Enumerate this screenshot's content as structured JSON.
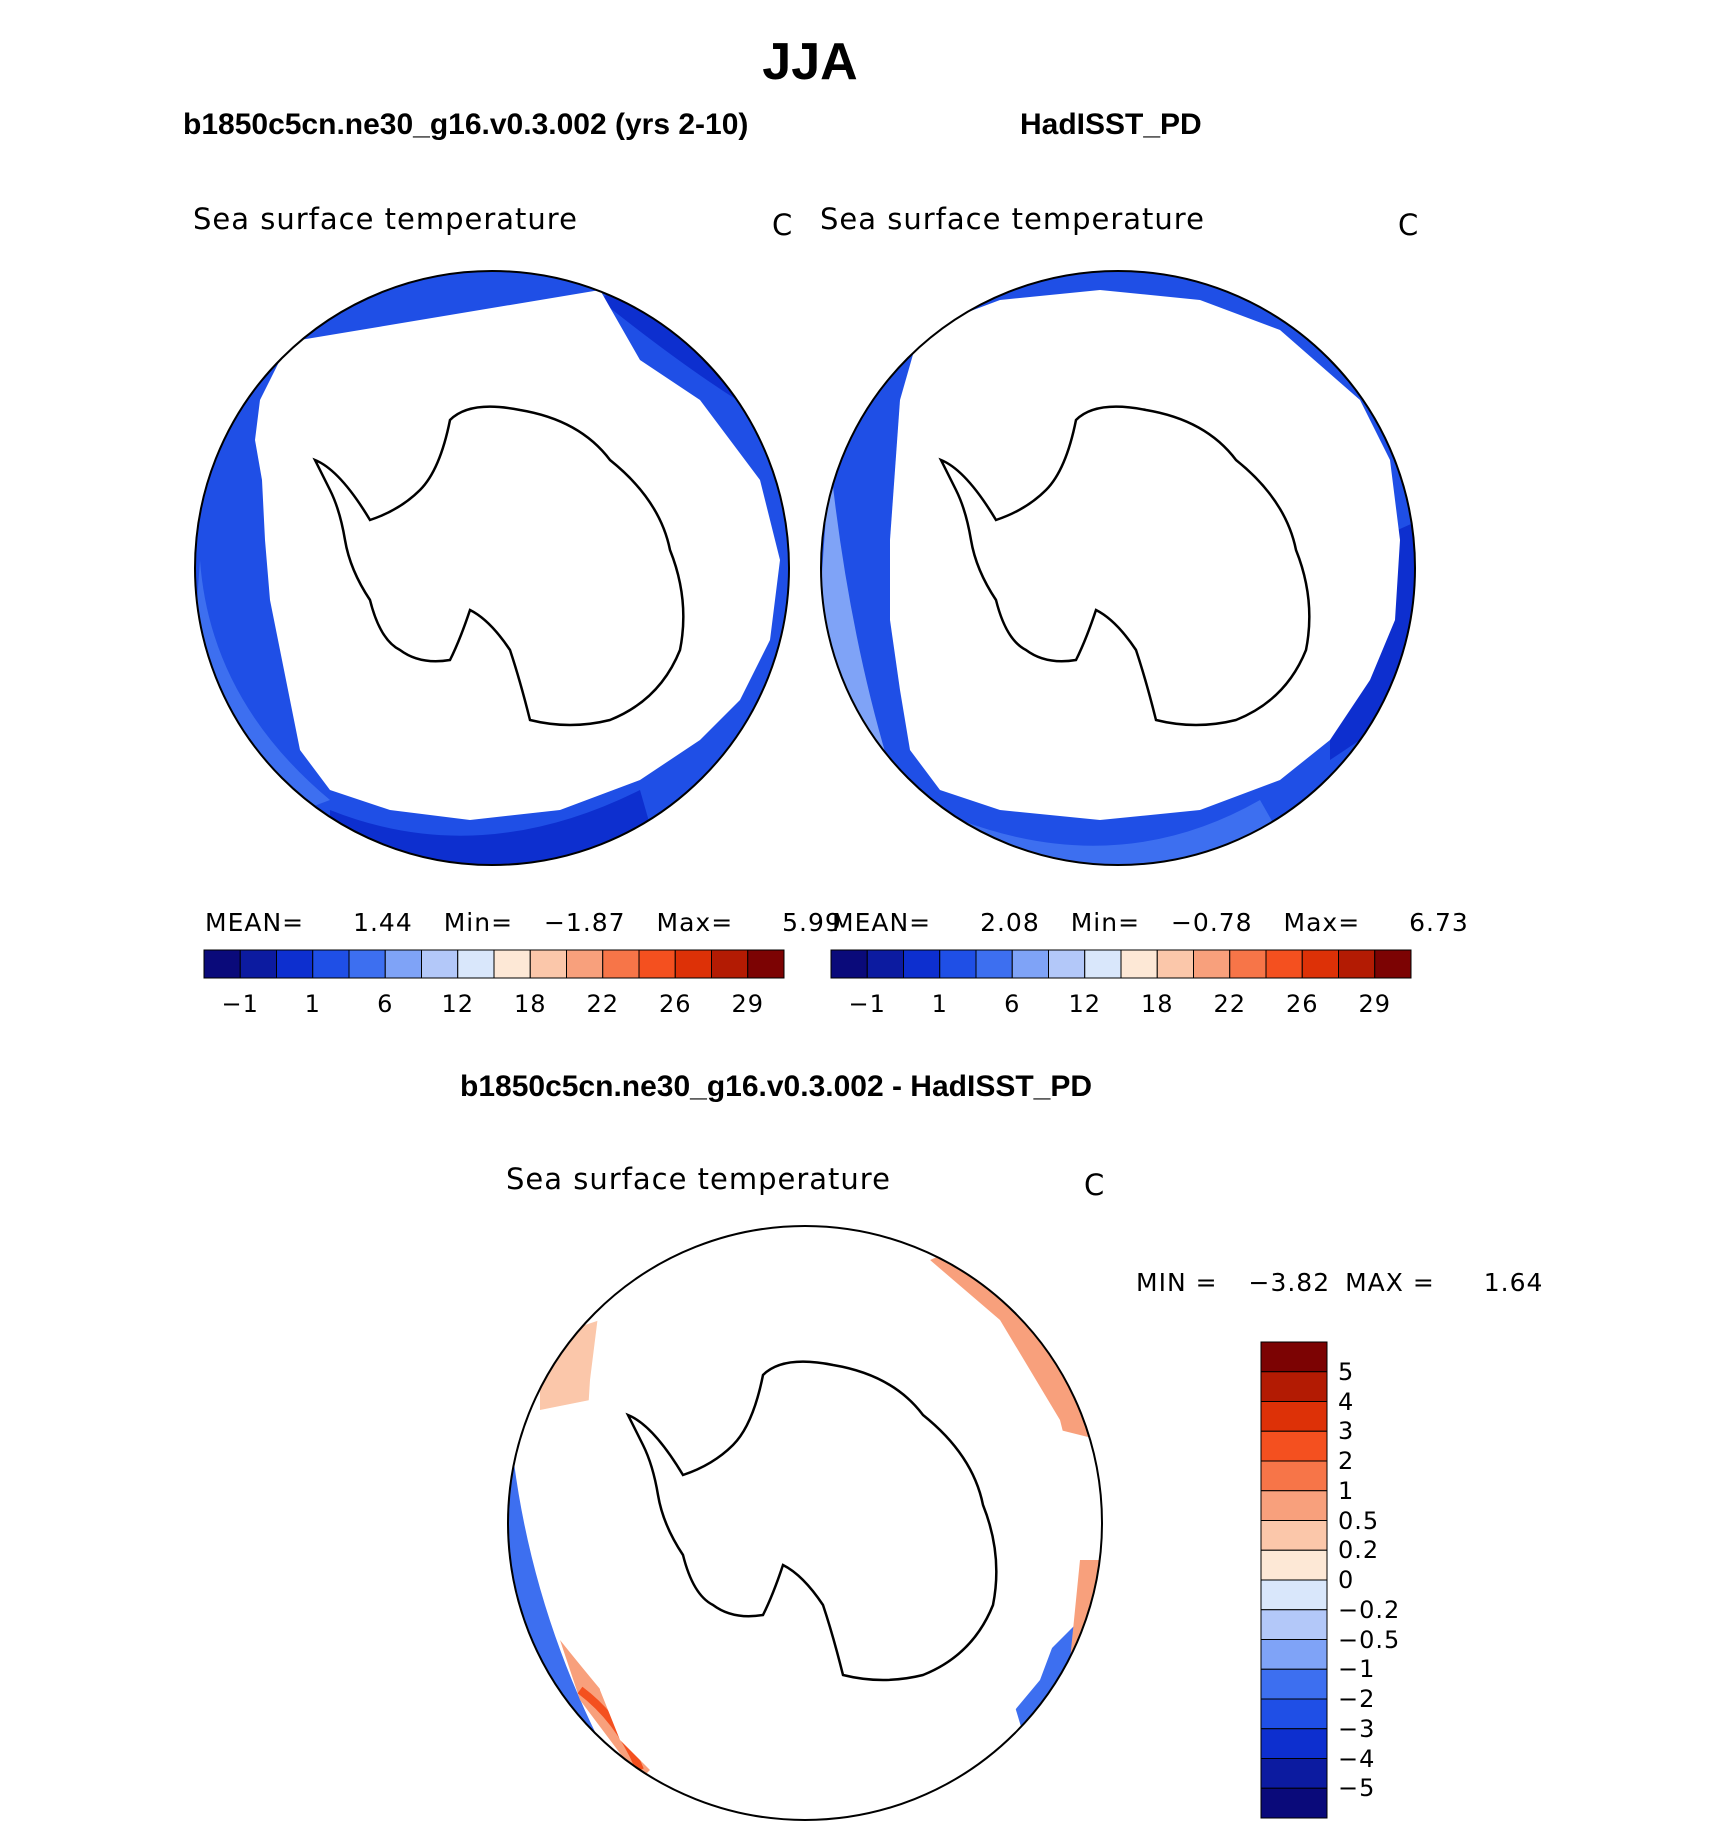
{
  "season": "JJA",
  "colors": {
    "ice": "#ffffff",
    "coast": "#000000",
    "abs_palette": [
      "#0a0a7a",
      "#0c1ba0",
      "#0d2fcf",
      "#1f4fe6",
      "#3d6ff0",
      "#7fa3f7",
      "#b3c8f9",
      "#d9e7fb",
      "#fde8d6",
      "#fbc7aa",
      "#f8a07c",
      "#f77548",
      "#f4501f",
      "#dd3107",
      "#b31b03",
      "#7c0303"
    ],
    "diff_palette": [
      "#0a0a7a",
      "#0c1ba0",
      "#0d2fcf",
      "#1f4fe6",
      "#3d6ff0",
      "#7fa3f7",
      "#b3c8f9",
      "#d9e7fb",
      "#fde8d6",
      "#fbc7aa",
      "#f8a07c",
      "#f77548",
      "#f4501f",
      "#dd3107",
      "#b31b03",
      "#7c0303"
    ]
  },
  "panels": {
    "model": {
      "header": "b1850c5cn.ne30_g16.v0.3.002 (yrs 2-10)",
      "variable": "Sea surface temperature",
      "units": "C",
      "stats": {
        "mean_label": "MEAN=",
        "mean": "1.44",
        "min_label": "Min=",
        "min": "−1.87",
        "max_label": "Max=",
        "max": "5.99"
      }
    },
    "obs": {
      "header": "HadISST_PD",
      "variable": "Sea surface temperature",
      "units": "C",
      "stats": {
        "mean_label": "MEAN=",
        "mean": "2.08",
        "min_label": "Min=",
        "min": "−0.78",
        "max_label": "Max=",
        "max": "6.73"
      }
    },
    "diff": {
      "header": "b1850c5cn.ne30_g16.v0.3.002 - HadISST_PD",
      "variable": "Sea surface temperature",
      "units": "C",
      "stats": {
        "min_label": "MIN =",
        "min": "−3.82",
        "max_label": "MAX =",
        "max": "1.64"
      }
    }
  },
  "abs_colorbar_labels": [
    "−1",
    "1",
    "6",
    "12",
    "18",
    "22",
    "26",
    "29"
  ],
  "diff_colorbar_labels": [
    "5",
    "4",
    "3",
    "2",
    "1",
    "0.5",
    "0.2",
    "0",
    "−0.2",
    "−0.5",
    "−1",
    "−2",
    "−3",
    "−4",
    "−5"
  ]
}
